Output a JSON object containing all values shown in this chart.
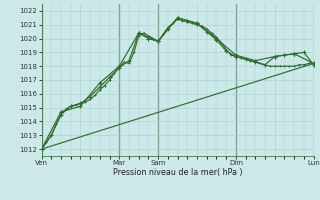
{
  "bg_color": "#cce8e8",
  "grid_color": "#aacccc",
  "line_color": "#2d6e2d",
  "ylabel": "Pression niveau de la mer( hPa )",
  "ylim": [
    1011.5,
    1022.5
  ],
  "yticks": [
    1012,
    1013,
    1014,
    1015,
    1016,
    1017,
    1018,
    1019,
    1020,
    1021,
    1022
  ],
  "xtick_labels": [
    "Ven",
    "",
    "Mar",
    "Sam",
    "",
    "Dim",
    "",
    "Lun"
  ],
  "xtick_positions": [
    0,
    24,
    48,
    72,
    96,
    120,
    144,
    168
  ],
  "vlines": [
    0,
    48,
    72,
    120,
    168
  ],
  "series1": {
    "x": [
      0,
      3,
      6,
      9,
      12,
      15,
      18,
      21,
      24,
      27,
      30,
      33,
      36,
      39,
      42,
      45,
      48,
      51,
      54,
      57,
      60,
      63,
      66,
      69,
      72,
      75,
      78,
      81,
      84,
      87,
      90,
      93,
      96,
      99,
      102,
      105,
      108,
      111,
      114,
      117,
      120,
      123,
      126,
      129,
      132,
      135,
      138,
      141,
      144,
      147,
      150,
      153,
      156,
      159,
      162,
      165,
      168
    ],
    "y": [
      1012.0,
      1012.5,
      1013.0,
      1013.8,
      1014.5,
      1014.9,
      1015.1,
      1015.2,
      1015.3,
      1015.4,
      1015.6,
      1015.9,
      1016.3,
      1016.6,
      1017.0,
      1017.5,
      1017.9,
      1018.3,
      1018.2,
      1019.0,
      1020.2,
      1020.4,
      1020.2,
      1020.0,
      1019.8,
      1020.3,
      1020.8,
      1021.1,
      1021.4,
      1021.3,
      1021.2,
      1021.1,
      1021.0,
      1020.9,
      1020.7,
      1020.4,
      1020.1,
      1019.7,
      1019.2,
      1018.8,
      1018.7,
      1018.6,
      1018.5,
      1018.4,
      1018.3,
      1018.2,
      1018.1,
      1018.0,
      1018.0,
      1018.0,
      1018.0,
      1018.0,
      1018.0,
      1018.1,
      1018.1,
      1018.2,
      1018.2
    ]
  },
  "series2": {
    "x": [
      0,
      6,
      12,
      18,
      24,
      30,
      36,
      42,
      48,
      54,
      60,
      66,
      72,
      78,
      84,
      90,
      96,
      102,
      108,
      114,
      120,
      126,
      132,
      138,
      144,
      150,
      156,
      162,
      168
    ],
    "y": [
      1012.0,
      1013.0,
      1014.5,
      1015.1,
      1015.3,
      1015.8,
      1016.5,
      1017.2,
      1017.9,
      1018.4,
      1020.4,
      1020.0,
      1019.8,
      1020.7,
      1021.5,
      1021.3,
      1021.1,
      1020.5,
      1019.9,
      1019.1,
      1018.7,
      1018.5,
      1018.3,
      1018.1,
      1018.7,
      1018.8,
      1018.9,
      1019.0,
      1018.1
    ]
  },
  "series3": {
    "x": [
      0,
      12,
      24,
      36,
      48,
      60,
      72,
      84,
      96,
      108,
      120,
      132,
      144,
      156,
      168
    ],
    "y": [
      1012.0,
      1014.7,
      1015.1,
      1016.8,
      1018.0,
      1020.4,
      1019.8,
      1021.5,
      1021.1,
      1020.0,
      1018.8,
      1018.4,
      1018.7,
      1018.9,
      1018.2
    ]
  },
  "series4": {
    "x": [
      0,
      168
    ],
    "y": [
      1012.0,
      1018.2
    ]
  }
}
